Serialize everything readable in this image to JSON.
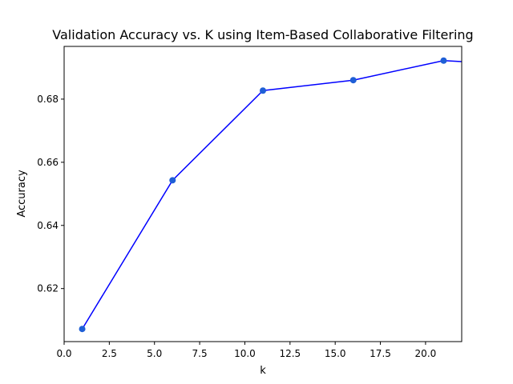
{
  "chart_data": {
    "type": "line",
    "title": "Validation Accuracy vs. K using Item-Based Collaborative Filtering",
    "xlabel": "k",
    "ylabel": "Accuracy",
    "xlim": [
      0,
      22
    ],
    "ylim": [
      0.6032,
      0.6967
    ],
    "xticks": [
      "0.0",
      "2.5",
      "5.0",
      "7.5",
      "10.0",
      "12.5",
      "15.0",
      "17.5",
      "20.0"
    ],
    "yticks": [
      "0.62",
      "0.64",
      "0.66",
      "0.68"
    ],
    "grid": false,
    "legend": "none",
    "series": [
      {
        "line_color": "#0000ff",
        "marker_color": "#1f5fd6",
        "x": [
          1,
          6,
          11,
          16,
          21,
          22
        ],
        "y": [
          0.6072,
          0.6543,
          0.6827,
          0.686,
          0.6922,
          0.6919
        ],
        "markers": [
          true,
          true,
          true,
          true,
          true,
          false
        ]
      }
    ]
  }
}
